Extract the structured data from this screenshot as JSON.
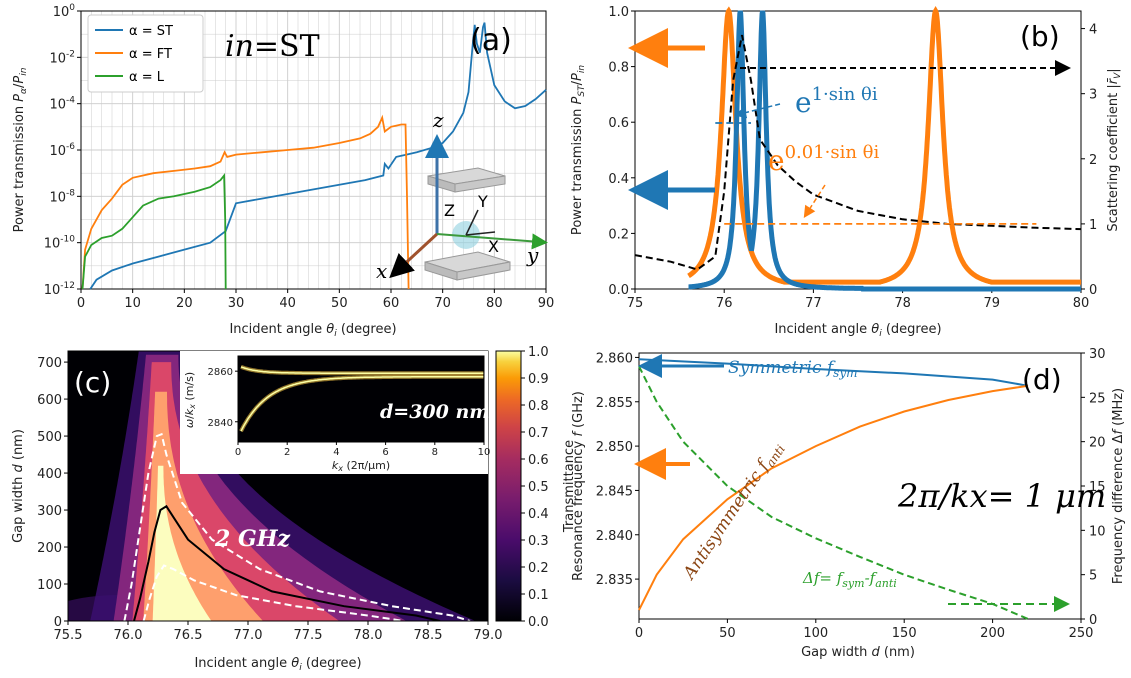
{
  "chart_data": [
    {
      "panel": "(a)",
      "type": "line",
      "annotation": "in=ST",
      "annotation_parts": {
        "italic": "in",
        "rest": "=ST"
      },
      "xlabel": "Incident angle θi (degree)",
      "ylabel": "Power transmission Pα/Pin",
      "xlim": [
        0,
        90
      ],
      "ylim_log10": [
        -12,
        0
      ],
      "yscale": "log",
      "grid": true,
      "legend_position": "top-left",
      "x_ticks": [
        "0",
        "10",
        "20",
        "30",
        "40",
        "50",
        "60",
        "70",
        "80",
        "90"
      ],
      "y_ticks": [
        "10-12",
        "10-10",
        "10-8",
        "10-6",
        "10-4",
        "10-2",
        "100"
      ],
      "inset_axis_labels": [
        "z",
        "x",
        "y",
        "X",
        "Y",
        "Z"
      ],
      "series": [
        {
          "name": "α = ST",
          "color": "#1f77b4",
          "points": [
            [
              1.8,
              -12
            ],
            [
              3,
              -11.6
            ],
            [
              6,
              -11.2
            ],
            [
              10,
              -10.9
            ],
            [
              15,
              -10.6
            ],
            [
              20,
              -10.3
            ],
            [
              25,
              -10
            ],
            [
              28,
              -9.5
            ],
            [
              30,
              -8.3
            ],
            [
              35,
              -8.1
            ],
            [
              40,
              -7.9
            ],
            [
              45,
              -7.7
            ],
            [
              50,
              -7.5
            ],
            [
              55,
              -7.3
            ],
            [
              58.5,
              -7.1
            ],
            [
              58.8,
              -6.6
            ],
            [
              59.5,
              -6.8
            ],
            [
              61,
              -6.3
            ],
            [
              63,
              -6.2
            ],
            [
              65,
              -6.1
            ],
            [
              68,
              -5.9
            ],
            [
              70,
              -5.7
            ],
            [
              72,
              -5.2
            ],
            [
              74,
              -4.4
            ],
            [
              75,
              -3.5
            ],
            [
              75.8,
              -1.5
            ],
            [
              76.2,
              -0.6
            ],
            [
              76.6,
              -1.4
            ],
            [
              77.2,
              -1.8
            ],
            [
              77.8,
              -0.7
            ],
            [
              78.1,
              -0.5
            ],
            [
              78.6,
              -1.8
            ],
            [
              80,
              -3.2
            ],
            [
              82,
              -3.9
            ],
            [
              84,
              -4.2
            ],
            [
              86,
              -4.1
            ],
            [
              88,
              -3.8
            ],
            [
              90,
              -3.4
            ]
          ]
        },
        {
          "name": "α = FT",
          "color": "#ff7f0e",
          "points": [
            [
              0.3,
              -12
            ],
            [
              0.8,
              -10.3
            ],
            [
              2,
              -9.4
            ],
            [
              4,
              -8.6
            ],
            [
              6,
              -8.1
            ],
            [
              8,
              -7.5
            ],
            [
              10,
              -7.2
            ],
            [
              14,
              -7.0
            ],
            [
              18,
              -6.9
            ],
            [
              22,
              -6.8
            ],
            [
              25,
              -6.7
            ],
            [
              27,
              -6.5
            ],
            [
              27.8,
              -6.1
            ],
            [
              28.3,
              -6.3
            ],
            [
              30,
              -6.2
            ],
            [
              35,
              -6.1
            ],
            [
              40,
              -6.0
            ],
            [
              45,
              -5.9
            ],
            [
              50,
              -5.7
            ],
            [
              54,
              -5.5
            ],
            [
              56,
              -5.3
            ],
            [
              57.5,
              -5.0
            ],
            [
              58.3,
              -4.6
            ],
            [
              58.8,
              -5.2
            ],
            [
              60,
              -5.0
            ],
            [
              62,
              -4.9
            ],
            [
              62.8,
              -4.9
            ],
            [
              63.1,
              -8.0
            ],
            [
              63.4,
              -12
            ]
          ]
        },
        {
          "name": "α = L",
          "color": "#2ca02c",
          "points": [
            [
              0.3,
              -12
            ],
            [
              0.8,
              -10.6
            ],
            [
              2,
              -10.1
            ],
            [
              4,
              -9.8
            ],
            [
              6,
              -9.7
            ],
            [
              8,
              -9.4
            ],
            [
              10,
              -8.9
            ],
            [
              12,
              -8.4
            ],
            [
              15,
              -8.1
            ],
            [
              18,
              -8.0
            ],
            [
              22,
              -7.8
            ],
            [
              25,
              -7.6
            ],
            [
              27,
              -7.3
            ],
            [
              27.7,
              -7.1
            ],
            [
              27.9,
              -9
            ],
            [
              28.0,
              -12
            ]
          ]
        }
      ]
    },
    {
      "panel": "(b)",
      "type": "line",
      "xlabel": "Incident angle θi (degree)",
      "ylabel": "Power transmission PST/Pin",
      "ylabel_right": "Scattering coefficient |r̄V|",
      "xlim": [
        75,
        80
      ],
      "ylim": [
        0,
        1
      ],
      "ylim_right": [
        0,
        4.27
      ],
      "x_ticks": [
        "75",
        "76",
        "77",
        "78",
        "79",
        "80"
      ],
      "y_ticks": [
        "0.0",
        "0.2",
        "0.4",
        "0.6",
        "0.8",
        "1.0"
      ],
      "y_ticks_right": [
        "0",
        "1",
        "2",
        "3",
        "4"
      ],
      "annotations": [
        {
          "base": "e",
          "exp": "1·sin θi",
          "color": "#1f77b4"
        },
        {
          "base": "e",
          "exp": "0.01·sin θi",
          "color": "#ff7f0e"
        }
      ],
      "series": [
        {
          "name": "",
          "color": "#1f77b4",
          "lorentz_centers": [
            76.18,
            76.43
          ],
          "hwhm": 0.05,
          "background": 0.0
        },
        {
          "name": "",
          "color": "#ff7f0e",
          "lorentz_centers": [
            76.05,
            78.37
          ],
          "hwhm": 0.1,
          "background": 0.025
        },
        {
          "name": "",
          "color": "#000000",
          "axis": "right",
          "dashed": true,
          "points": [
            [
              75,
              0.52
            ],
            [
              75.4,
              0.42
            ],
            [
              75.7,
              0.3
            ],
            [
              75.9,
              0.5
            ],
            [
              76.0,
              1.5
            ],
            [
              76.1,
              3.2
            ],
            [
              76.2,
              3.9
            ],
            [
              76.3,
              3.2
            ],
            [
              76.4,
              2.3
            ],
            [
              76.6,
              1.9
            ],
            [
              76.8,
              1.65
            ],
            [
              77,
              1.45
            ],
            [
              77.5,
              1.2
            ],
            [
              78,
              1.07
            ],
            [
              78.5,
              1.0
            ],
            [
              79,
              0.97
            ],
            [
              79.5,
              0.94
            ],
            [
              80,
              0.92
            ]
          ]
        },
        {
          "name": "",
          "color": "#1f77b4",
          "axis": "right",
          "dashed": true,
          "points": [
            [
              75.9,
              2.55
            ],
            [
              76.3,
              2.55
            ]
          ]
        },
        {
          "name": "",
          "color": "#ff7f0e",
          "axis": "right",
          "dashed": true,
          "points": [
            [
              76.0,
              1.0
            ],
            [
              79.5,
              1.0
            ]
          ]
        }
      ]
    },
    {
      "panel": "(c)",
      "type": "heatmap",
      "xlabel": "Incident angle θi (degree)",
      "ylabel": "Gap width d (nm)",
      "xlim": [
        75.5,
        79.0
      ],
      "ylim": [
        0,
        730
      ],
      "x_ticks": [
        "75.5",
        "76.0",
        "76.5",
        "77.0",
        "77.5",
        "78.0",
        "78.5",
        "79.0"
      ],
      "y_ticks": [
        "0",
        "100",
        "200",
        "300",
        "400",
        "500",
        "600",
        "700"
      ],
      "colorbar_label": "Transmittance",
      "colorbar_ticks": [
        "0.0",
        "0.1",
        "0.2",
        "0.3",
        "0.4",
        "0.5",
        "0.6",
        "0.7",
        "0.8",
        "0.9",
        "1.0"
      ],
      "annotation": "2 GHz",
      "inset": {
        "label": "d=300 nm",
        "xlabel": "kx (2π/μm)",
        "ylabel": "ω/kx (m/s)",
        "xlim": [
          0,
          10
        ],
        "ylim": [
          2832,
          2866
        ],
        "x_ticks": [
          "0",
          "2",
          "4",
          "6",
          "8",
          "10"
        ],
        "y_ticks": [
          "2840",
          "2860"
        ]
      },
      "contours": [
        {
          "style": "solid",
          "color": "#000000",
          "points": [
            [
              76.05,
              0
            ],
            [
              76.1,
              60
            ],
            [
              76.17,
              160
            ],
            [
              76.22,
              240
            ],
            [
              76.27,
              300
            ],
            [
              76.32,
              310
            ],
            [
              76.38,
              280
            ],
            [
              76.5,
              220
            ],
            [
              76.8,
              140
            ],
            [
              77.2,
              80
            ],
            [
              77.8,
              40
            ],
            [
              78.4,
              15
            ],
            [
              78.6,
              0
            ]
          ]
        },
        {
          "style": "dashed",
          "color": "#ffffff",
          "points": [
            [
              75.97,
              0
            ],
            [
              76.03,
              100
            ],
            [
              76.1,
              250
            ],
            [
              76.17,
              400
            ],
            [
              76.24,
              500
            ],
            [
              76.28,
              505
            ],
            [
              76.32,
              450
            ],
            [
              76.45,
              320
            ],
            [
              76.7,
              220
            ],
            [
              77.1,
              140
            ],
            [
              77.6,
              80
            ],
            [
              78.2,
              40
            ],
            [
              78.7,
              15
            ],
            [
              78.85,
              0
            ]
          ]
        },
        {
          "style": "dashed",
          "color": "#ffffff",
          "points": [
            [
              76.13,
              0
            ],
            [
              76.18,
              60
            ],
            [
              76.24,
              120
            ],
            [
              76.3,
              150
            ],
            [
              76.38,
              140
            ],
            [
              76.55,
              110
            ],
            [
              76.9,
              70
            ],
            [
              77.4,
              40
            ],
            [
              78,
              15
            ],
            [
              78.3,
              0
            ]
          ]
        }
      ]
    },
    {
      "panel": "(d)",
      "type": "line",
      "xlabel": "Gap width d (nm)",
      "ylabel": "Resonance frequency f (GHz)",
      "ylabel_right": "Frequency difference Δf (MHz)",
      "xlim": [
        0,
        250
      ],
      "ylim": [
        2.8305,
        2.8605
      ],
      "ylim_right": [
        0,
        30
      ],
      "x_ticks": [
        "0",
        "50",
        "100",
        "150",
        "200",
        "250"
      ],
      "y_ticks": [
        "2.835",
        "2.840",
        "2.845",
        "2.850",
        "2.855",
        "2.860"
      ],
      "y_ticks_right": [
        "0",
        "5",
        "10",
        "15",
        "20",
        "25",
        "30"
      ],
      "annotation": "2π/kx= 1 μm",
      "series": [
        {
          "name": "Symmetric fsym",
          "color": "#1f77b4",
          "points": [
            [
              0,
              2.8598
            ],
            [
              50,
              2.8593
            ],
            [
              100,
              2.8587
            ],
            [
              150,
              2.8582
            ],
            [
              200,
              2.8575
            ],
            [
              220,
              2.8568
            ]
          ]
        },
        {
          "name": "Antisymmetric fanti",
          "color": "#ff7f0e",
          "points": [
            [
              0,
              2.8315
            ],
            [
              10,
              2.8355
            ],
            [
              25,
              2.8395
            ],
            [
              50,
              2.844
            ],
            [
              75,
              2.8475
            ],
            [
              100,
              2.85
            ],
            [
              125,
              2.8522
            ],
            [
              150,
              2.8539
            ],
            [
              175,
              2.8552
            ],
            [
              200,
              2.8562
            ],
            [
              220,
              2.8568
            ]
          ]
        },
        {
          "name": "Δf= fsym-fanti",
          "color": "#2ca02c",
          "axis": "right",
          "dashed": true,
          "points": [
            [
              0,
              28.5
            ],
            [
              10,
              24.5
            ],
            [
              25,
              20
            ],
            [
              50,
              15
            ],
            [
              75,
              11.5
            ],
            [
              100,
              9.1
            ],
            [
              125,
              7
            ],
            [
              150,
              5
            ],
            [
              175,
              3.3
            ],
            [
              200,
              1.7
            ],
            [
              220,
              0
            ]
          ]
        }
      ]
    }
  ],
  "labels": {
    "a_panel": "(a)",
    "a_in": "in",
    "a_eq": "=ST",
    "b_panel": "(b)",
    "c_panel": "(c)",
    "c_ann": "2 GHz",
    "c_inset_label": "d=300 nm",
    "d_panel": "(d)",
    "d_ann": "2π/kx= 1 μm",
    "d_sym": "Symmetric f",
    "d_sym_sub": "sym",
    "d_anti": "Antisymmetric f",
    "d_anti_sub": "anti",
    "d_delta": "Δf= f",
    "d_delta_sub1": "sym",
    "d_delta_mid": "-f",
    "d_delta_sub2": "anti"
  },
  "colors": {
    "blue": "#1f77b4",
    "orange": "#ff7f0e",
    "green": "#2ca02c",
    "grid": "#cccccc"
  }
}
